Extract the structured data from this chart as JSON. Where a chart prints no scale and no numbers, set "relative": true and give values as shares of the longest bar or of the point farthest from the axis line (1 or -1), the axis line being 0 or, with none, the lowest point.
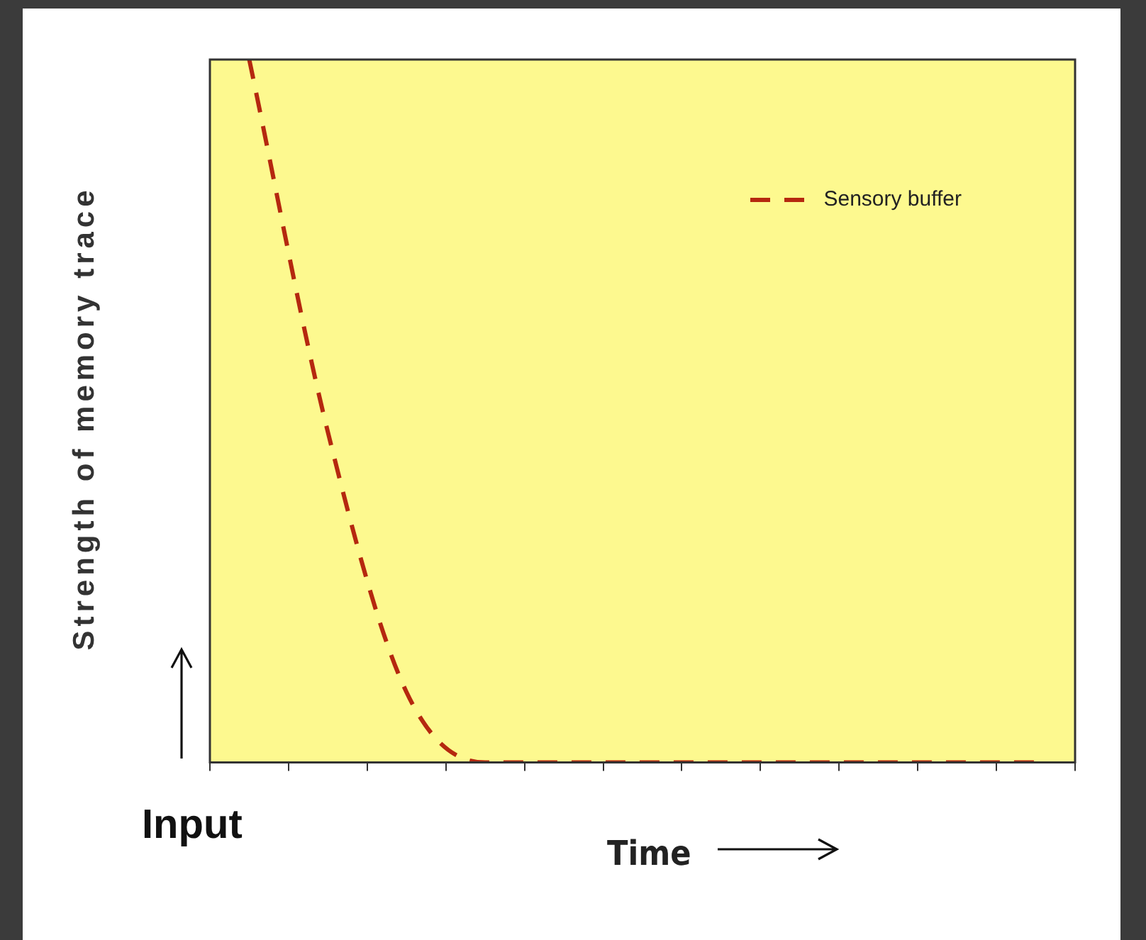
{
  "chart_data": {
    "type": "line",
    "relative": true,
    "xlabel": "Time",
    "ylabel": "Strength of memory trace",
    "categories": [
      null,
      null,
      null,
      null,
      null,
      null,
      null,
      null,
      null,
      null,
      null
    ],
    "series": [
      {
        "name": "Sensory buffer",
        "color": "#b5280f",
        "values": [
          1,
          0.47,
          0.1,
          0,
          0,
          0,
          0,
          0,
          0,
          0,
          0
        ]
      }
    ],
    "legend": "top right",
    "line_style": "dashed",
    "annotations": [
      "Input"
    ]
  }
}
